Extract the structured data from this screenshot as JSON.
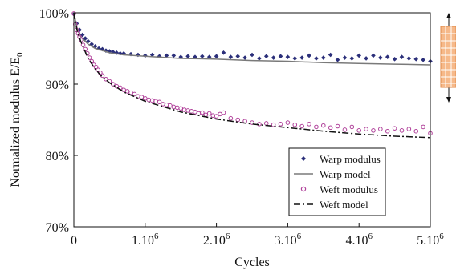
{
  "chart_data": {
    "type": "scatter",
    "ylabel": "Normalized modulus E/E",
    "ylabel_sub": "0",
    "xlabel": "Cycles",
    "ylim": [
      70,
      100
    ],
    "xlim": [
      0,
      5000000
    ],
    "y_ticks": [
      {
        "value": 100,
        "label": "100%"
      },
      {
        "value": 90,
        "label": "90%"
      },
      {
        "value": 80,
        "label": "80%"
      },
      {
        "value": 70,
        "label": "70%"
      }
    ],
    "x_ticks": [
      {
        "value": 0,
        "label": "0",
        "sup": ""
      },
      {
        "value": 1000000,
        "label": "1.10",
        "sup": "6"
      },
      {
        "value": 2000000,
        "label": "2.10",
        "sup": "6"
      },
      {
        "value": 3000000,
        "label": "3.10",
        "sup": "6"
      },
      {
        "value": 4000000,
        "label": "4.10",
        "sup": "6"
      },
      {
        "value": 5000000,
        "label": "5.10",
        "sup": "6"
      }
    ],
    "grid": false,
    "legend_position": "bottom-right",
    "series": [
      {
        "name": "Warp modulus",
        "kind": "points",
        "marker": "diamond",
        "color": "#2b2f7a",
        "x": [
          0,
          40000,
          80000,
          120000,
          160000,
          200000,
          250000,
          300000,
          350000,
          400000,
          450000,
          500000,
          550000,
          600000,
          650000,
          700000,
          800000,
          900000,
          1000000,
          1100000,
          1200000,
          1300000,
          1400000,
          1500000,
          1600000,
          1700000,
          1800000,
          1900000,
          2000000,
          2100000,
          2200000,
          2300000,
          2400000,
          2500000,
          2600000,
          2700000,
          2800000,
          2900000,
          3000000,
          3100000,
          3200000,
          3300000,
          3400000,
          3500000,
          3600000,
          3700000,
          3800000,
          3900000,
          4000000,
          4100000,
          4200000,
          4300000,
          4400000,
          4500000,
          4600000,
          4700000,
          4800000,
          4900000,
          5000000
        ],
        "y": [
          99.8,
          98.5,
          97.6,
          96.9,
          96.4,
          96.0,
          95.6,
          95.3,
          95.0,
          94.9,
          94.7,
          94.6,
          94.5,
          94.4,
          94.3,
          94.3,
          94.2,
          94.1,
          94.0,
          94.1,
          93.9,
          94.0,
          94.0,
          93.8,
          93.9,
          93.8,
          93.9,
          93.8,
          93.9,
          94.4,
          93.8,
          93.9,
          93.7,
          94.1,
          93.6,
          93.9,
          93.7,
          93.9,
          93.8,
          93.6,
          93.7,
          94.0,
          93.6,
          93.7,
          94.1,
          93.4,
          93.7,
          93.6,
          94.0,
          93.6,
          94.0,
          93.7,
          93.8,
          93.5,
          93.8,
          93.6,
          93.5,
          93.4,
          93.2
        ]
      },
      {
        "name": "Warp model",
        "kind": "line",
        "dash": "",
        "color": "#7a7a7a",
        "x": [
          0,
          50000,
          100000,
          200000,
          300000,
          400000,
          500000,
          700000,
          1000000,
          1500000,
          2000000,
          2500000,
          3000000,
          3500000,
          4000000,
          4500000,
          5000000
        ],
        "y": [
          100,
          97.6,
          96.6,
          95.6,
          95.0,
          94.7,
          94.4,
          94.1,
          93.9,
          93.6,
          93.5,
          93.3,
          93.2,
          93.0,
          92.9,
          92.8,
          92.7
        ]
      },
      {
        "name": "Weft modulus",
        "kind": "points",
        "marker": "circle",
        "color": "#b0419a",
        "x": [
          0,
          20000,
          40000,
          60000,
          80000,
          100000,
          130000,
          160000,
          190000,
          220000,
          250000,
          280000,
          310000,
          340000,
          370000,
          400000,
          450000,
          500000,
          550000,
          600000,
          650000,
          700000,
          750000,
          800000,
          850000,
          900000,
          950000,
          1000000,
          1050000,
          1100000,
          1150000,
          1200000,
          1250000,
          1300000,
          1350000,
          1400000,
          1450000,
          1500000,
          1550000,
          1600000,
          1650000,
          1700000,
          1750000,
          1800000,
          1850000,
          1900000,
          1950000,
          2000000,
          2050000,
          2100000,
          2200000,
          2300000,
          2400000,
          2500000,
          2600000,
          2700000,
          2800000,
          2900000,
          3000000,
          3100000,
          3200000,
          3300000,
          3400000,
          3500000,
          3600000,
          3700000,
          3800000,
          3900000,
          4000000,
          4100000,
          4200000,
          4300000,
          4400000,
          4500000,
          4600000,
          4700000,
          4800000,
          4900000,
          5000000
        ],
        "y": [
          99.9,
          98.4,
          97.6,
          97.1,
          96.6,
          96.2,
          95.5,
          94.9,
          94.3,
          93.7,
          93.2,
          92.7,
          92.4,
          92.0,
          91.6,
          91.2,
          90.7,
          90.4,
          90.0,
          89.7,
          89.5,
          89.2,
          89.0,
          88.8,
          88.6,
          88.3,
          88.2,
          88.0,
          87.8,
          87.7,
          87.6,
          87.5,
          87.2,
          87.1,
          87.0,
          86.8,
          86.7,
          86.6,
          86.4,
          86.3,
          86.2,
          86.1,
          85.9,
          86.0,
          85.7,
          85.9,
          85.6,
          85.5,
          85.8,
          86.0,
          85.2,
          85.0,
          84.8,
          84.6,
          84.4,
          84.5,
          84.3,
          84.4,
          84.6,
          84.3,
          84.1,
          84.4,
          84.0,
          84.2,
          83.9,
          84.1,
          83.6,
          84.0,
          83.5,
          83.7,
          83.5,
          83.7,
          83.4,
          83.8,
          83.5,
          83.7,
          83.4,
          84.0,
          83.1
        ]
      },
      {
        "name": "Weft model",
        "kind": "line",
        "dash": "8 3 2 3",
        "color": "#111111",
        "x": [
          0,
          50000,
          100000,
          200000,
          300000,
          400000,
          500000,
          700000,
          1000000,
          1500000,
          2000000,
          2500000,
          3000000,
          3500000,
          4000000,
          4500000,
          5000000
        ],
        "y": [
          100,
          97.3,
          95.9,
          93.6,
          92.1,
          91.0,
          90.2,
          88.9,
          87.6,
          86.1,
          85.1,
          84.4,
          83.9,
          83.4,
          83.0,
          82.7,
          82.5
        ]
      }
    ]
  }
}
